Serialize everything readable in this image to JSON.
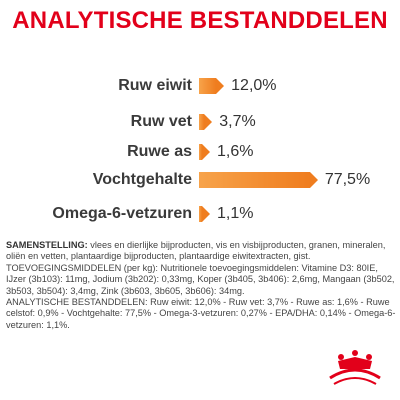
{
  "title": "ANALYTISCHE BESTANDDELEN",
  "colors": {
    "title": "#e2001a",
    "bar": "#ef7d1f",
    "text": "#3a3a3a",
    "logo": "#e2001a"
  },
  "chart_data": {
    "type": "bar",
    "orientation": "horizontal",
    "title": "ANALYTISCHE BESTANDDELEN",
    "categories": [
      "Ruw eiwit",
      "Ruw vet",
      "Ruwe as",
      "Vochtgehalte",
      "Omega-6-vetzuren"
    ],
    "values": [
      12.0,
      3.7,
      1.6,
      77.5,
      1.1
    ],
    "value_labels": [
      "12,0%",
      "3,7%",
      "1,6%",
      "77,5%",
      "1,1%"
    ],
    "unit": "%",
    "xlim": [
      0,
      100
    ],
    "grid": false,
    "legend": "none"
  },
  "composition": {
    "samenstelling_label": "SAMENSTELLING:",
    "samenstelling_text": "vlees en dierlijke bijproducten, vis en visbijproducten, granen, mineralen, oliën en vetten, plantaardige bijproducten, plantaardige eiwitextracten, gist.",
    "toevoegings_text": "TOEVOEGINGSMIDDELEN (per kg): Nutritionele toevoegingsmiddelen: Vitamine D3: 80IE, IJzer (3b103): 11mg, Jodium (3b202): 0,33mg, Koper (3b405, 3b406): 2,6mg, Mangaan (3b502, 3b503, 3b504): 3,4mg, Zink (3b603, 3b605, 3b606): 34mg.",
    "analytische_text": "ANALYTISCHE BESTANDDELEN: Ruw eiwit: 12,0% - Ruw vet: 3,7% - Ruwe as: 1,6% - Ruwe celstof: 0,9% - Vochtgehalte: 77,5% - Omega-3-vetzuren: 0,27% - EPA/DHA: 0,14% - Omega-6-vetzuren: 1,1%."
  },
  "logo": {
    "name": "crown-logo"
  }
}
